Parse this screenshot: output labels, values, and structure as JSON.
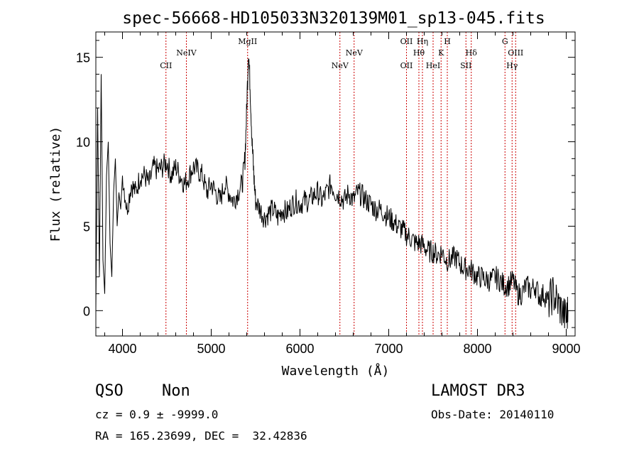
{
  "chart_data": {
    "type": "line",
    "title": "spec-56668-HD105033N320139M01_sp13-045.fits",
    "xlabel": "Wavelength (Å)",
    "ylabel": "Flux (relative)",
    "xlim": [
      3700,
      9100
    ],
    "ylim": [
      -1.5,
      16.5
    ],
    "xticks": [
      4000,
      5000,
      6000,
      7000,
      8000,
      9000
    ],
    "yticks": [
      0,
      5,
      10,
      15
    ],
    "series": [
      {
        "name": "spectrum",
        "x": [
          3700,
          3720,
          3740,
          3760,
          3780,
          3800,
          3820,
          3840,
          3860,
          3880,
          3900,
          3920,
          3940,
          3960,
          3980,
          4000,
          4050,
          4100,
          4150,
          4200,
          4250,
          4300,
          4350,
          4400,
          4450,
          4500,
          4550,
          4600,
          4650,
          4700,
          4750,
          4800,
          4850,
          4900,
          4950,
          5000,
          5050,
          5100,
          5150,
          5200,
          5250,
          5300,
          5350,
          5380,
          5400,
          5420,
          5440,
          5460,
          5480,
          5500,
          5550,
          5600,
          5650,
          5700,
          5750,
          5800,
          5850,
          5900,
          5950,
          6000,
          6050,
          6100,
          6150,
          6200,
          6250,
          6300,
          6350,
          6400,
          6450,
          6500,
          6550,
          6600,
          6650,
          6700,
          6750,
          6800,
          6850,
          6900,
          6950,
          7000,
          7050,
          7100,
          7150,
          7200,
          7250,
          7300,
          7350,
          7400,
          7450,
          7500,
          7550,
          7600,
          7650,
          7700,
          7750,
          7800,
          7850,
          7900,
          7950,
          8000,
          8050,
          8100,
          8150,
          8200,
          8250,
          8300,
          8350,
          8400,
          8450,
          8500,
          8550,
          8600,
          8650,
          8700,
          8750,
          8800,
          8850,
          8900,
          8950,
          9000,
          9020
        ],
        "values": [
          0,
          12,
          2,
          14,
          3,
          1,
          8,
          10,
          4,
          2,
          7,
          9,
          5,
          7,
          6,
          8,
          6,
          7.5,
          7,
          8,
          8,
          7.5,
          8.5,
          8.3,
          8.5,
          8.8,
          8,
          8.5,
          8,
          7.5,
          8,
          8.5,
          8.3,
          8,
          7,
          7.5,
          7,
          6.5,
          7.5,
          7,
          6.5,
          7,
          7.5,
          9,
          12,
          15.5,
          13,
          10,
          8,
          6.5,
          6,
          5.5,
          5.8,
          6,
          5.5,
          6,
          5.8,
          6.2,
          6.5,
          6.3,
          6.5,
          6.5,
          6.8,
          7,
          6.5,
          7,
          7.5,
          7,
          6.8,
          6.5,
          7,
          6.5,
          7,
          6.8,
          6.5,
          6.3,
          6,
          6,
          5.8,
          5.5,
          5.3,
          5,
          4.8,
          4.5,
          4.3,
          4,
          4,
          3.8,
          3.5,
          3.5,
          3.3,
          3.5,
          3,
          3,
          3.2,
          2.8,
          2.5,
          2.5,
          2.3,
          2,
          2,
          1.8,
          1.8,
          2,
          1.8,
          1.5,
          1.5,
          1.8,
          1,
          1,
          1.5,
          1.2,
          1.5,
          0.8,
          1,
          0.5,
          1,
          0.5,
          0,
          -0.5,
          0
        ]
      }
    ],
    "lines": [
      {
        "label": "CII",
        "x": 4490,
        "row": 2
      },
      {
        "label": "NeIV",
        "x": 4720,
        "row": 1
      },
      {
        "label": "MgII",
        "x": 5410,
        "row": 0
      },
      {
        "label": "NeV",
        "x": 6450,
        "row": 2
      },
      {
        "label": "NeV",
        "x": 6610,
        "row": 1
      },
      {
        "label": "OII",
        "x": 7200,
        "row": 0
      },
      {
        "label": "OII",
        "x": 7200,
        "row": 2
      },
      {
        "label": "Hθ",
        "x": 7340,
        "row": 1
      },
      {
        "label": "Hη",
        "x": 7380,
        "row": 0
      },
      {
        "label": "HeI",
        "x": 7500,
        "row": 2
      },
      {
        "label": "K",
        "x": 7590,
        "row": 1
      },
      {
        "label": "H",
        "x": 7660,
        "row": 0
      },
      {
        "label": "SII",
        "x": 7870,
        "row": 2
      },
      {
        "label": "Hδ",
        "x": 7930,
        "row": 1
      },
      {
        "label": "G",
        "x": 8310,
        "row": 0
      },
      {
        "label": "Hγ",
        "x": 8390,
        "row": 2
      },
      {
        "label": "OIII",
        "x": 8430,
        "row": 1
      }
    ]
  },
  "info": {
    "class": "QSO",
    "subclass": "Non",
    "survey": "LAMOST DR3",
    "cz": "cz = 0.9 ± -9999.0",
    "obs_date": "Obs-Date: 20140110",
    "coords": "RA = 165.23699, DEC =  32.42836"
  },
  "colors": {
    "line": "#cc0000",
    "spectrum": "#000000"
  }
}
